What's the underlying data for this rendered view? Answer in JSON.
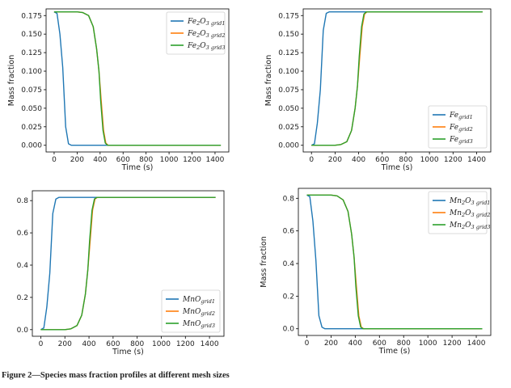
{
  "caption": "Figure 2—Species mass fraction profiles at different mesh sizes",
  "chart_data": [
    {
      "type": "line",
      "panel": "top-left",
      "xlabel": "Time (s)",
      "ylabel": "Mass fraction",
      "xlim": [
        -70,
        1520
      ],
      "ylim": [
        -0.009,
        0.184
      ],
      "xticks": [
        0,
        200,
        400,
        600,
        800,
        1000,
        1200,
        1400
      ],
      "yticks": [
        0.0,
        0.025,
        0.05,
        0.075,
        0.1,
        0.125,
        0.15,
        0.175
      ],
      "ytick_labels": [
        "0.000",
        "0.025",
        "0.050",
        "0.075",
        "0.100",
        "0.125",
        "0.150",
        "0.175"
      ],
      "legend_position": "top-right",
      "series": [
        {
          "name": "Fe₂O₃ grid1",
          "base": "Fe",
          "sub1": "2",
          "mid": "O",
          "sub2": "3",
          "tag": "grid1",
          "color": "#1f77b4",
          "x": [
            0,
            25,
            50,
            75,
            100,
            125,
            150,
            200,
            1450
          ],
          "y": [
            0.18,
            0.178,
            0.15,
            0.105,
            0.025,
            0.002,
            0.0,
            0.0,
            0.0
          ]
        },
        {
          "name": "Fe₂O₃ grid2",
          "base": "Fe",
          "sub1": "2",
          "mid": "O",
          "sub2": "3",
          "tag": "grid2",
          "color": "#ff7f0e",
          "x": [
            0,
            200,
            250,
            300,
            340,
            370,
            390,
            410,
            430,
            450,
            470,
            1450
          ],
          "y": [
            0.18,
            0.18,
            0.179,
            0.175,
            0.16,
            0.13,
            0.1,
            0.06,
            0.02,
            0.003,
            0.0,
            0.0
          ]
        },
        {
          "name": "Fe₂O₃ grid3",
          "base": "Fe",
          "sub1": "2",
          "mid": "O",
          "sub2": "3",
          "tag": "grid3",
          "color": "#2ca02c",
          "x": [
            0,
            200,
            250,
            300,
            340,
            370,
            390,
            405,
            425,
            445,
            465,
            1450
          ],
          "y": [
            0.18,
            0.18,
            0.179,
            0.175,
            0.16,
            0.13,
            0.1,
            0.06,
            0.02,
            0.003,
            0.0,
            0.0
          ]
        }
      ]
    },
    {
      "type": "line",
      "panel": "top-right",
      "xlabel": "Time (s)",
      "ylabel": "Mass fraction",
      "xlim": [
        -70,
        1520
      ],
      "ylim": [
        -0.009,
        0.184
      ],
      "xticks": [
        0,
        200,
        400,
        600,
        800,
        1000,
        1200,
        1400
      ],
      "yticks": [
        0.0,
        0.025,
        0.05,
        0.075,
        0.1,
        0.125,
        0.15,
        0.175
      ],
      "ytick_labels": [
        "0.000",
        "0.025",
        "0.050",
        "0.075",
        "0.100",
        "0.125",
        "0.150",
        "0.175"
      ],
      "legend_position": "lower-right",
      "series": [
        {
          "name": "Fe grid1",
          "base": "Fe",
          "sub1": "",
          "mid": "",
          "sub2": "",
          "tag": "grid1",
          "color": "#1f77b4",
          "x": [
            0,
            25,
            50,
            75,
            100,
            125,
            150,
            200,
            1450
          ],
          "y": [
            0.0,
            0.002,
            0.03,
            0.075,
            0.155,
            0.178,
            0.18,
            0.18,
            0.18
          ]
        },
        {
          "name": "Fe grid2",
          "base": "Fe",
          "sub1": "",
          "mid": "",
          "sub2": "",
          "tag": "grid2",
          "color": "#ff7f0e",
          "x": [
            0,
            200,
            250,
            300,
            340,
            370,
            390,
            410,
            430,
            450,
            470,
            1450
          ],
          "y": [
            0.0,
            0.0,
            0.001,
            0.005,
            0.02,
            0.05,
            0.08,
            0.12,
            0.16,
            0.177,
            0.18,
            0.18
          ]
        },
        {
          "name": "Fe grid3",
          "base": "Fe",
          "sub1": "",
          "mid": "",
          "sub2": "",
          "tag": "grid3",
          "color": "#2ca02c",
          "x": [
            0,
            200,
            250,
            300,
            340,
            370,
            390,
            405,
            425,
            445,
            465,
            1450
          ],
          "y": [
            0.0,
            0.0,
            0.001,
            0.005,
            0.02,
            0.05,
            0.08,
            0.12,
            0.16,
            0.177,
            0.18,
            0.18
          ]
        }
      ]
    },
    {
      "type": "line",
      "panel": "bottom-left",
      "xlabel": "Time (s)",
      "ylabel": "Mass fraction",
      "xlim": [
        -70,
        1520
      ],
      "ylim": [
        -0.041,
        0.861
      ],
      "xticks": [
        0,
        200,
        400,
        600,
        800,
        1000,
        1200,
        1400
      ],
      "yticks": [
        0.0,
        0.2,
        0.4,
        0.6,
        0.8
      ],
      "ytick_labels": [
        "0.0",
        "0.2",
        "0.4",
        "0.6",
        "0.8"
      ],
      "legend_position": "lower-right",
      "series": [
        {
          "name": "MnO grid1",
          "base": "MnO",
          "sub1": "",
          "mid": "",
          "sub2": "",
          "tag": "grid1",
          "color": "#1f77b4",
          "x": [
            0,
            25,
            50,
            75,
            100,
            125,
            150,
            200,
            1450
          ],
          "y": [
            0.0,
            0.01,
            0.14,
            0.35,
            0.72,
            0.81,
            0.82,
            0.82,
            0.82
          ]
        },
        {
          "name": "MnO grid2",
          "base": "MnO",
          "sub1": "",
          "mid": "",
          "sub2": "",
          "tag": "grid2",
          "color": "#ff7f0e",
          "x": [
            0,
            200,
            250,
            300,
            340,
            370,
            390,
            410,
            430,
            450,
            470,
            1450
          ],
          "y": [
            0.0,
            0.0,
            0.005,
            0.025,
            0.09,
            0.22,
            0.37,
            0.55,
            0.74,
            0.81,
            0.82,
            0.82
          ]
        },
        {
          "name": "MnO grid3",
          "base": "MnO",
          "sub1": "",
          "mid": "",
          "sub2": "",
          "tag": "grid3",
          "color": "#2ca02c",
          "x": [
            0,
            200,
            250,
            300,
            340,
            370,
            390,
            405,
            425,
            445,
            465,
            1450
          ],
          "y": [
            0.0,
            0.0,
            0.005,
            0.025,
            0.09,
            0.22,
            0.37,
            0.55,
            0.74,
            0.81,
            0.82,
            0.82
          ]
        }
      ]
    },
    {
      "type": "line",
      "panel": "bottom-right",
      "xlabel": "Time (s)",
      "ylabel": "Mass fraction",
      "xlim": [
        -70,
        1520
      ],
      "ylim": [
        -0.041,
        0.861
      ],
      "xticks": [
        0,
        200,
        400,
        600,
        800,
        1000,
        1200,
        1400
      ],
      "yticks": [
        0.0,
        0.2,
        0.4,
        0.6,
        0.8
      ],
      "ytick_labels": [
        "0.0",
        "0.2",
        "0.4",
        "0.6",
        "0.8"
      ],
      "legend_position": "top-right",
      "series": [
        {
          "name": "Mn₂O₃ grid1",
          "base": "Mn",
          "sub1": "2",
          "mid": "O",
          "sub2": "3",
          "tag": "grid1",
          "color": "#1f77b4",
          "x": [
            0,
            25,
            50,
            75,
            100,
            125,
            150,
            200,
            1450
          ],
          "y": [
            0.82,
            0.81,
            0.66,
            0.42,
            0.08,
            0.01,
            0.0,
            0.0,
            0.0
          ]
        },
        {
          "name": "Mn₂O₃ grid2",
          "base": "Mn",
          "sub1": "2",
          "mid": "O",
          "sub2": "3",
          "tag": "grid2",
          "color": "#ff7f0e",
          "x": [
            0,
            200,
            250,
            300,
            340,
            370,
            390,
            410,
            430,
            450,
            470,
            1450
          ],
          "y": [
            0.82,
            0.82,
            0.815,
            0.79,
            0.72,
            0.58,
            0.44,
            0.26,
            0.08,
            0.01,
            0.0,
            0.0
          ]
        },
        {
          "name": "Mn₂O₃ grid3",
          "base": "Mn",
          "sub1": "2",
          "mid": "O",
          "sub2": "3",
          "tag": "grid3",
          "color": "#2ca02c",
          "x": [
            0,
            200,
            250,
            300,
            340,
            370,
            390,
            405,
            425,
            445,
            465,
            1450
          ],
          "y": [
            0.82,
            0.82,
            0.815,
            0.79,
            0.72,
            0.58,
            0.44,
            0.26,
            0.08,
            0.01,
            0.0,
            0.0
          ]
        }
      ]
    }
  ]
}
